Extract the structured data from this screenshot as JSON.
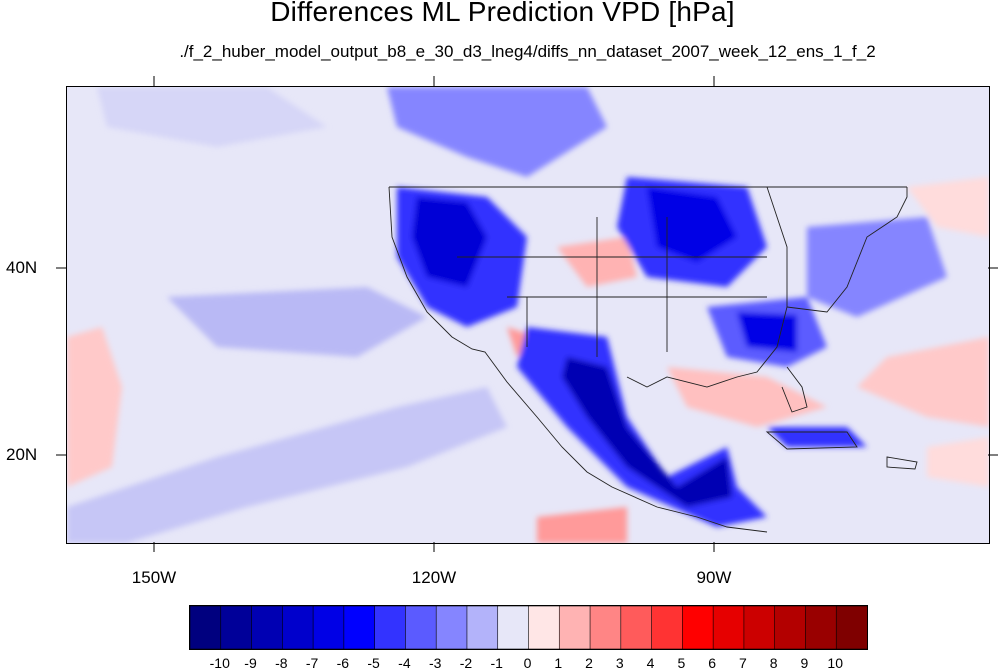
{
  "title": "Differences ML Prediction VPD [hPa]",
  "subtitle": "./f_2_huber_model_output_b8_e_30_d3_lneg4/diffs_nn_dataset_2007_week_12_ens_1_f_2",
  "map": {
    "projection": "cylindrical equidistant",
    "extent": {
      "lon_min": -159.4,
      "lon_max": -60.8,
      "lat_min": 10,
      "lat_max": 59
    },
    "lon_ticks": [
      {
        "label": "150W",
        "lon": -150
      },
      {
        "label": "120W",
        "lon": -120
      },
      {
        "label": "90W",
        "lon": -90
      }
    ],
    "lat_ticks": [
      {
        "label": "40N",
        "lat": 40
      },
      {
        "label": "20N",
        "lat": 20
      }
    ],
    "field": "VPD prediction difference",
    "units": "hPa"
  },
  "colorbar": {
    "levels": [
      "-10",
      "-9",
      "-8",
      "-7",
      "-6",
      "-5",
      "-4",
      "-3",
      "-2",
      "-1",
      "0",
      "1",
      "2",
      "3",
      "4",
      "5",
      "6",
      "7",
      "8",
      "9",
      "10"
    ],
    "colors": [
      "#00007f",
      "#000099",
      "#0000b3",
      "#0000cc",
      "#0000e6",
      "#0000ff",
      "#3333ff",
      "#5b5bff",
      "#8585ff",
      "#b3b3fa",
      "#e7e7f8",
      "#ffe6e6",
      "#ffb3b3",
      "#ff8585",
      "#ff5b5b",
      "#ff3333",
      "#ff0000",
      "#e60000",
      "#cc0000",
      "#b30000",
      "#990000",
      "#7f0000"
    ]
  }
}
